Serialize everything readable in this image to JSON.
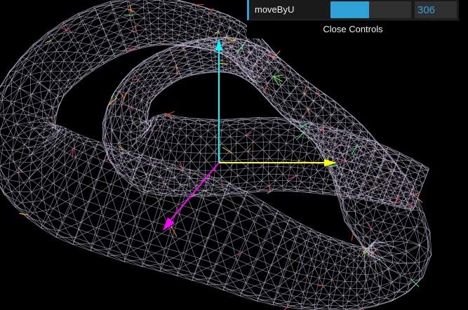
{
  "controls": {
    "label": "moveByU",
    "value": "306",
    "fill_fraction": 0.48,
    "close_label": "Close Controls",
    "accent_color": "#2fa1d6"
  },
  "scene": {
    "mesh_color": "#cfc8e6",
    "axes": {
      "x_color": "#ffff00",
      "y_color": "#00ffff",
      "z_color": "#ff00ff"
    }
  }
}
